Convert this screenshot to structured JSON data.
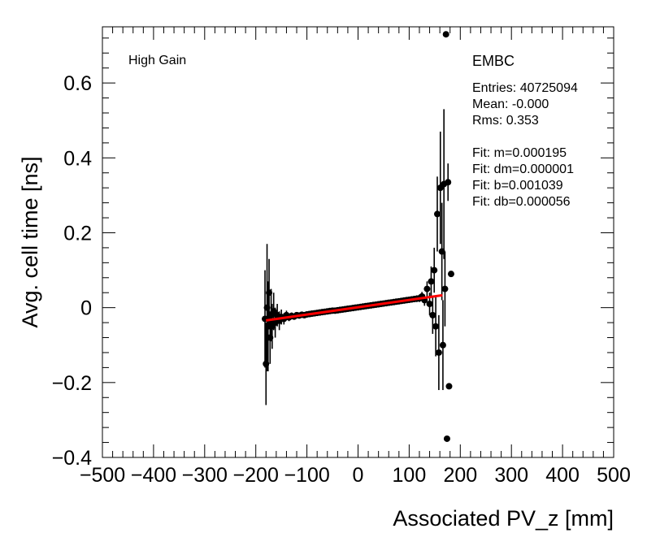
{
  "chart_data": {
    "type": "scatter",
    "title": "",
    "xlabel": "Associated PV_z [mm]",
    "ylabel": "Avg. cell time [ns]",
    "xlim": [
      -500,
      500
    ],
    "ylim": [
      -0.4,
      0.75
    ],
    "x_ticks": [
      -500,
      -400,
      -300,
      -200,
      -100,
      0,
      100,
      200,
      300,
      400,
      500
    ],
    "x_tick_labels": [
      "−500",
      "−400",
      "−300",
      "−200",
      "−100",
      "0",
      "100",
      "200",
      "300",
      "400",
      "500"
    ],
    "y_ticks": [
      -0.4,
      -0.2,
      0,
      0.2,
      0.4,
      0.6
    ],
    "y_tick_labels": [
      "−0.4",
      "−0.2",
      "0",
      "0.2",
      "0.4",
      "0.6"
    ],
    "grid": false,
    "gain_label": "High Gain",
    "partition_label": "EMBC",
    "stats": [
      "Entries: 40725094",
      "Mean: -0.000",
      "Rms: 0.353",
      "",
      "Fit: m=0.000195",
      "Fit: dm=0.000001",
      "Fit: b=0.001039",
      "Fit: db=0.000056"
    ],
    "fit": {
      "m": 0.000195,
      "b": 0.001039,
      "x_range": [
        -180,
        165
      ],
      "color": "#ff0000"
    },
    "series": [
      {
        "marker_color": "#000000",
        "points": [
          {
            "x": -182,
            "y": -0.03,
            "err": 0.13
          },
          {
            "x": -180,
            "y": -0.15,
            "err": 0.11
          },
          {
            "x": -178,
            "y": 0.0,
            "err": 0.17
          },
          {
            "x": -176,
            "y": -0.05,
            "err": 0.12
          },
          {
            "x": -174,
            "y": 0.04,
            "err": 0.09
          },
          {
            "x": -172,
            "y": -0.08,
            "err": 0.07
          },
          {
            "x": -170,
            "y": -0.02,
            "err": 0.07
          },
          {
            "x": -168,
            "y": -0.05,
            "err": 0.06
          },
          {
            "x": -165,
            "y": -0.01,
            "err": 0.05
          },
          {
            "x": -162,
            "y": -0.04,
            "err": 0.04
          },
          {
            "x": -158,
            "y": -0.02,
            "err": 0.03
          },
          {
            "x": -154,
            "y": -0.035,
            "err": 0.025
          },
          {
            "x": -150,
            "y": -0.025,
            "err": 0.02
          },
          {
            "x": -145,
            "y": -0.03,
            "err": 0.015
          },
          {
            "x": -140,
            "y": -0.02,
            "err": 0.012
          },
          {
            "x": -135,
            "y": -0.026,
            "err": 0.01
          },
          {
            "x": -130,
            "y": -0.022,
            "err": 0.009
          },
          {
            "x": -125,
            "y": -0.024,
            "err": 0.008
          },
          {
            "x": -120,
            "y": -0.02,
            "err": 0.007
          },
          {
            "x": -115,
            "y": -0.021,
            "err": 0.007
          },
          {
            "x": -110,
            "y": -0.019,
            "err": 0.006
          },
          {
            "x": -105,
            "y": -0.02,
            "err": 0.006
          },
          {
            "x": -100,
            "y": -0.018,
            "err": 0.005
          },
          {
            "x": -95,
            "y": -0.017,
            "err": 0.005
          },
          {
            "x": -90,
            "y": -0.016,
            "err": 0.005
          },
          {
            "x": -85,
            "y": -0.015,
            "err": 0.005
          },
          {
            "x": -80,
            "y": -0.014,
            "err": 0.005
          },
          {
            "x": -75,
            "y": -0.013,
            "err": 0.005
          },
          {
            "x": -70,
            "y": -0.012,
            "err": 0.005
          },
          {
            "x": -65,
            "y": -0.011,
            "err": 0.005
          },
          {
            "x": -60,
            "y": -0.01,
            "err": 0.005
          },
          {
            "x": -55,
            "y": -0.009,
            "err": 0.005
          },
          {
            "x": -50,
            "y": -0.008,
            "err": 0.005
          },
          {
            "x": -45,
            "y": -0.008,
            "err": 0.005
          },
          {
            "x": -40,
            "y": -0.007,
            "err": 0.005
          },
          {
            "x": -35,
            "y": -0.006,
            "err": 0.005
          },
          {
            "x": -30,
            "y": -0.005,
            "err": 0.005
          },
          {
            "x": -25,
            "y": -0.004,
            "err": 0.005
          },
          {
            "x": -20,
            "y": -0.003,
            "err": 0.005
          },
          {
            "x": -15,
            "y": -0.002,
            "err": 0.005
          },
          {
            "x": -10,
            "y": -0.001,
            "err": 0.005
          },
          {
            "x": -5,
            "y": 0.0,
            "err": 0.005
          },
          {
            "x": 0,
            "y": 0.001,
            "err": 0.005
          },
          {
            "x": 5,
            "y": 0.002,
            "err": 0.005
          },
          {
            "x": 10,
            "y": 0.003,
            "err": 0.005
          },
          {
            "x": 15,
            "y": 0.004,
            "err": 0.005
          },
          {
            "x": 20,
            "y": 0.005,
            "err": 0.005
          },
          {
            "x": 25,
            "y": 0.006,
            "err": 0.005
          },
          {
            "x": 30,
            "y": 0.007,
            "err": 0.005
          },
          {
            "x": 35,
            "y": 0.008,
            "err": 0.005
          },
          {
            "x": 40,
            "y": 0.009,
            "err": 0.005
          },
          {
            "x": 45,
            "y": 0.01,
            "err": 0.005
          },
          {
            "x": 50,
            "y": 0.011,
            "err": 0.005
          },
          {
            "x": 55,
            "y": 0.012,
            "err": 0.005
          },
          {
            "x": 60,
            "y": 0.013,
            "err": 0.005
          },
          {
            "x": 65,
            "y": 0.014,
            "err": 0.005
          },
          {
            "x": 70,
            "y": 0.015,
            "err": 0.005
          },
          {
            "x": 75,
            "y": 0.016,
            "err": 0.005
          },
          {
            "x": 80,
            "y": 0.017,
            "err": 0.006
          },
          {
            "x": 85,
            "y": 0.018,
            "err": 0.006
          },
          {
            "x": 90,
            "y": 0.019,
            "err": 0.006
          },
          {
            "x": 95,
            "y": 0.02,
            "err": 0.007
          },
          {
            "x": 100,
            "y": 0.021,
            "err": 0.007
          },
          {
            "x": 105,
            "y": 0.022,
            "err": 0.008
          },
          {
            "x": 110,
            "y": 0.023,
            "err": 0.008
          },
          {
            "x": 115,
            "y": 0.024,
            "err": 0.009
          },
          {
            "x": 120,
            "y": 0.025,
            "err": 0.01
          },
          {
            "x": 125,
            "y": 0.03,
            "err": 0.012
          },
          {
            "x": 130,
            "y": 0.02,
            "err": 0.015
          },
          {
            "x": 135,
            "y": 0.05,
            "err": 0.02
          },
          {
            "x": 140,
            "y": 0.01,
            "err": 0.03
          },
          {
            "x": 143,
            "y": 0.07,
            "err": 0.04
          },
          {
            "x": 146,
            "y": -0.02,
            "err": 0.05
          },
          {
            "x": 149,
            "y": 0.1,
            "err": 0.06
          },
          {
            "x": 152,
            "y": -0.05,
            "err": 0.08
          },
          {
            "x": 155,
            "y": 0.25,
            "err": 0.1
          },
          {
            "x": 158,
            "y": -0.12,
            "err": 0.1
          },
          {
            "x": 161,
            "y": 0.32,
            "err": 0.15
          },
          {
            "x": 164,
            "y": 0.15,
            "err": 0.13
          },
          {
            "x": 166,
            "y": -0.1,
            "err": 0.12
          },
          {
            "x": 168,
            "y": 0.33,
            "err": 0.2
          },
          {
            "x": 170,
            "y": 0.05,
            "err": 0.1
          },
          {
            "x": 172,
            "y": 0.73,
            "err": 0.0
          },
          {
            "x": 174,
            "y": -0.35,
            "err": 0.0
          },
          {
            "x": 176,
            "y": 0.335,
            "err": 0.05
          },
          {
            "x": 178,
            "y": -0.21,
            "err": 0.0
          },
          {
            "x": 182,
            "y": 0.09,
            "err": 0.0
          }
        ]
      }
    ]
  }
}
